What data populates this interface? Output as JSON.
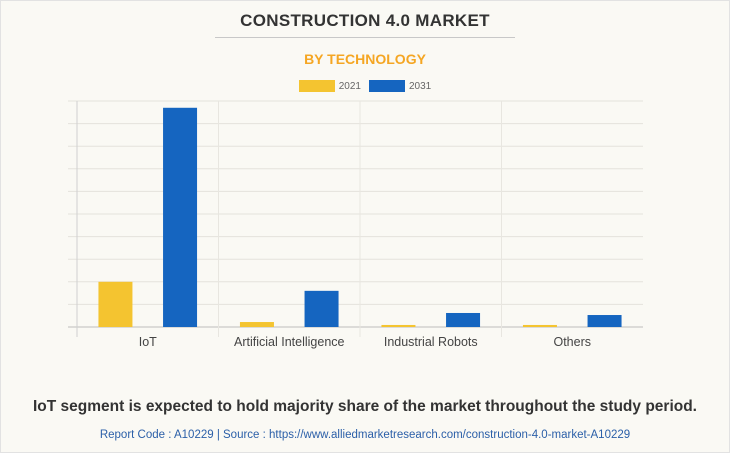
{
  "colors": {
    "series_2021": "#f4c430",
    "series_2031": "#1565c0",
    "subtitle": "#f5a623",
    "source": "#2b5fa8"
  },
  "chart_data": {
    "type": "bar",
    "title": "CONSTRUCTION 4.0 MARKET",
    "subtitle": "BY TECHNOLOGY",
    "xlabel": "",
    "ylabel": "",
    "categories": [
      "IoT",
      "Artificial Intelligence",
      "Industrial Robots",
      "Others"
    ],
    "series": [
      {
        "name": "2021",
        "color": "#f4c430",
        "values": [
          2.0,
          0.22,
          0.09,
          0.09
        ]
      },
      {
        "name": "2031",
        "color": "#1565c0",
        "values": [
          9.7,
          1.6,
          0.62,
          0.53
        ]
      }
    ],
    "ylim": [
      0,
      10
    ],
    "y_gridlines": 10,
    "y_tick_labels_visible": false,
    "grid": true,
    "legend_position": "top-center"
  },
  "footer": {
    "statement": "IoT segment is expected to hold majority share of the market throughout the study period.",
    "source": "Report Code : A10229  |  Source : https://www.alliedmarketresearch.com/construction-4.0-market-A10229"
  }
}
